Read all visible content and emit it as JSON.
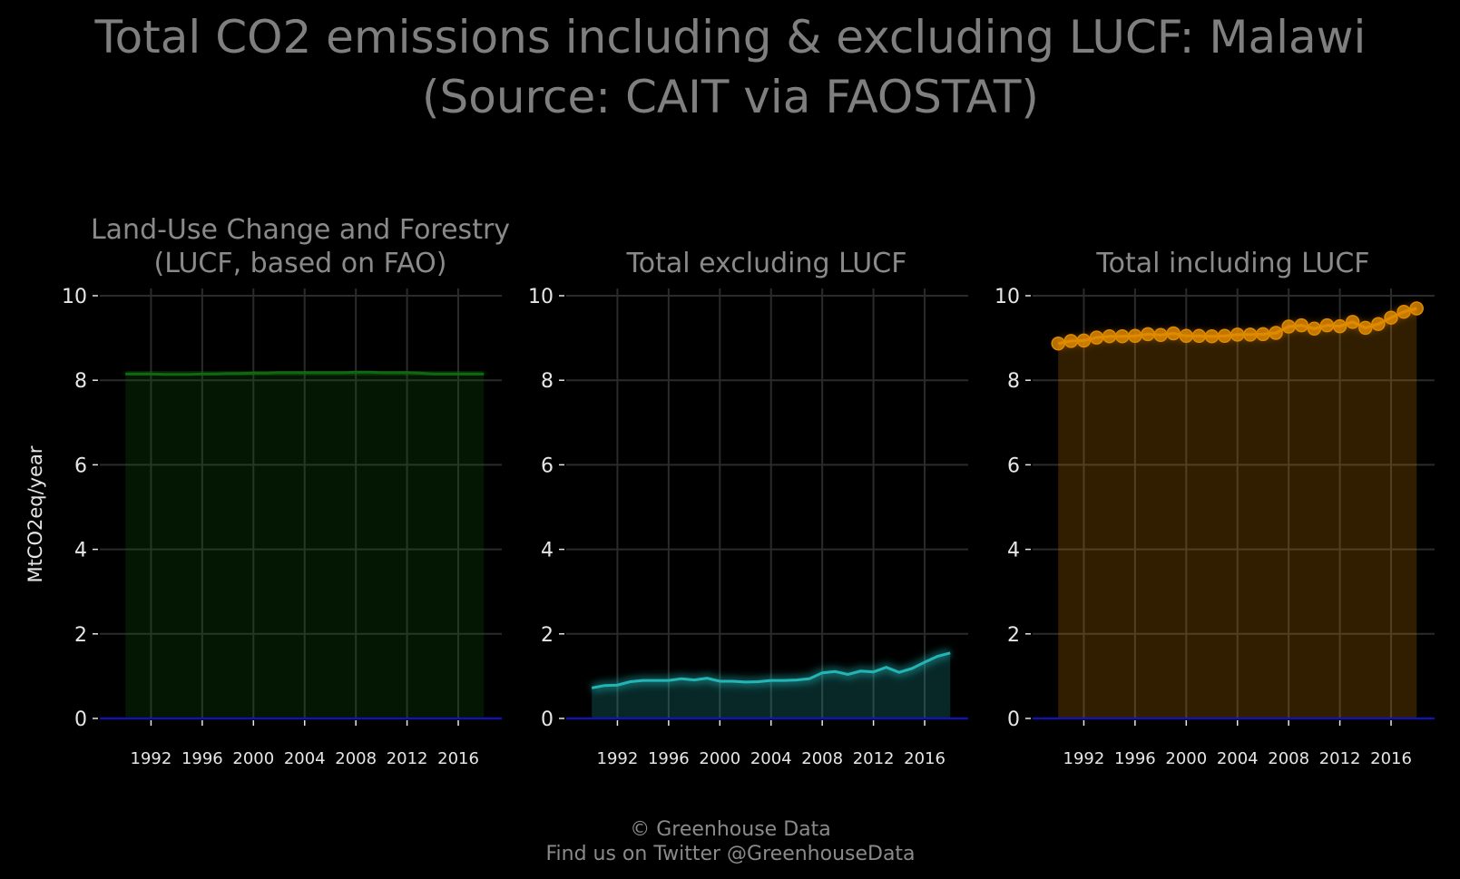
{
  "title_line1": "Total CO2 emissions including & excluding LUCF: Malawi",
  "title_line2": "(Source: CAIT via FAOSTAT)",
  "ylabel": "MtCO2eq/year",
  "footer_line1": "© Greenhouse Data",
  "footer_line2": "Find us on Twitter @GreenhouseData",
  "colors": {
    "background": "#000000",
    "grid": "#2b2b2b",
    "zero_line": "#1010d0",
    "lucf": "#0f6a0f",
    "excl": "#23b5b5",
    "incl": "#e08a00"
  },
  "chart_data": [
    {
      "type": "area",
      "title_line1": "Land-Use Change and Forestry",
      "title_line2": "(LUCF, based on FAO)",
      "color_key": "lucf",
      "markers": false,
      "x": [
        1990,
        1991,
        1992,
        1993,
        1994,
        1995,
        1996,
        1997,
        1998,
        1999,
        2000,
        2001,
        2002,
        2003,
        2004,
        2005,
        2006,
        2007,
        2008,
        2009,
        2010,
        2011,
        2012,
        2013,
        2014,
        2015,
        2016,
        2017,
        2018
      ],
      "values": [
        8.15,
        8.15,
        8.15,
        8.14,
        8.14,
        8.14,
        8.15,
        8.15,
        8.16,
        8.16,
        8.17,
        8.17,
        8.18,
        8.18,
        8.18,
        8.18,
        8.18,
        8.18,
        8.19,
        8.19,
        8.18,
        8.18,
        8.18,
        8.17,
        8.15,
        8.15,
        8.15,
        8.15,
        8.15
      ],
      "xticks": [
        "1992",
        "1996",
        "2000",
        "2004",
        "2008",
        "2012",
        "2016"
      ],
      "yticks": [
        "0",
        "2",
        "4",
        "6",
        "8",
        "10"
      ],
      "xlim": [
        1988,
        2019.4
      ],
      "ylim": [
        0,
        10
      ],
      "grid": true
    },
    {
      "type": "area",
      "title_line1": "",
      "title_line2": "Total excluding LUCF",
      "color_key": "excl",
      "markers": false,
      "x": [
        1990,
        1991,
        1992,
        1993,
        1994,
        1995,
        1996,
        1997,
        1998,
        1999,
        2000,
        2001,
        2002,
        2003,
        2004,
        2005,
        2006,
        2007,
        2008,
        2009,
        2010,
        2011,
        2012,
        2013,
        2014,
        2015,
        2016,
        2017,
        2018
      ],
      "values": [
        0.72,
        0.78,
        0.79,
        0.87,
        0.9,
        0.9,
        0.9,
        0.94,
        0.91,
        0.95,
        0.88,
        0.88,
        0.86,
        0.87,
        0.9,
        0.9,
        0.91,
        0.94,
        1.08,
        1.11,
        1.04,
        1.12,
        1.1,
        1.21,
        1.09,
        1.18,
        1.33,
        1.47,
        1.55
      ],
      "xticks": [
        "1992",
        "1996",
        "2000",
        "2004",
        "2008",
        "2012",
        "2016"
      ],
      "yticks": [
        "0",
        "2",
        "4",
        "6",
        "8",
        "10"
      ],
      "xlim": [
        1988,
        2019.4
      ],
      "ylim": [
        0,
        10
      ],
      "grid": true
    },
    {
      "type": "area",
      "title_line1": "",
      "title_line2": "Total including LUCF",
      "color_key": "incl",
      "markers": true,
      "x": [
        1990,
        1991,
        1992,
        1993,
        1994,
        1995,
        1996,
        1997,
        1998,
        1999,
        2000,
        2001,
        2002,
        2003,
        2004,
        2005,
        2006,
        2007,
        2008,
        2009,
        2010,
        2011,
        2012,
        2013,
        2014,
        2015,
        2016,
        2017,
        2018
      ],
      "values": [
        8.87,
        8.93,
        8.94,
        9.01,
        9.04,
        9.04,
        9.05,
        9.09,
        9.07,
        9.11,
        9.05,
        9.05,
        9.04,
        9.05,
        9.08,
        9.08,
        9.09,
        9.12,
        9.27,
        9.3,
        9.22,
        9.3,
        9.28,
        9.38,
        9.24,
        9.33,
        9.48,
        9.62,
        9.7
      ],
      "xticks": [
        "1992",
        "1996",
        "2000",
        "2004",
        "2008",
        "2012",
        "2016"
      ],
      "yticks": [
        "0",
        "2",
        "4",
        "6",
        "8",
        "10"
      ],
      "xlim": [
        1988,
        2019.4
      ],
      "ylim": [
        0,
        10
      ],
      "grid": true
    }
  ]
}
